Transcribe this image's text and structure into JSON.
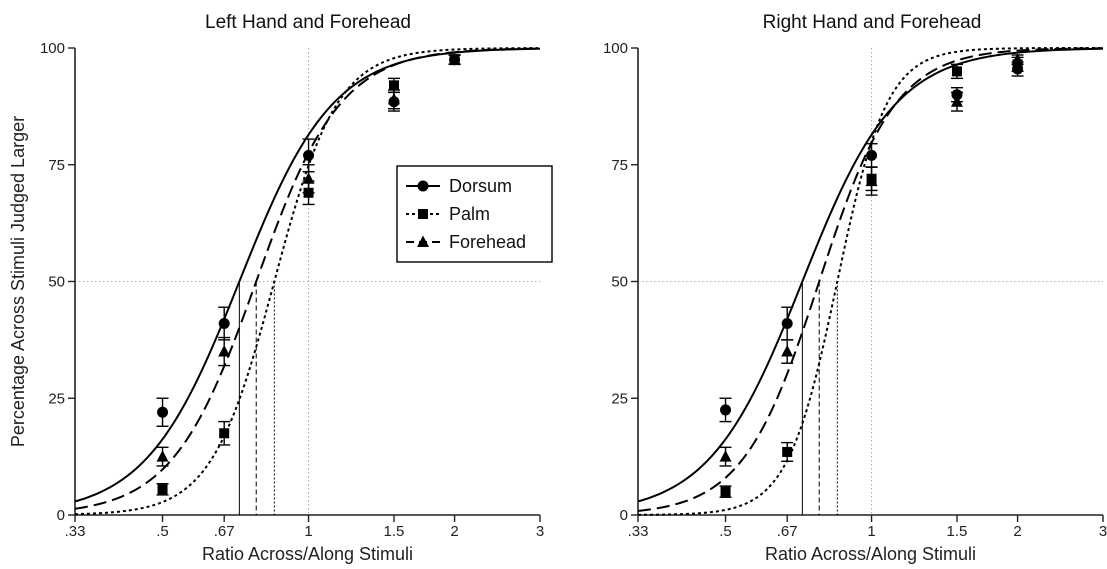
{
  "chart_data": {
    "type": "line",
    "ylabel": "Percentage Across Stimuli Judged Larger",
    "xlabel": "Ratio Across/Along Stimuli",
    "x_scale": "log",
    "xlim": [
      0.33,
      3
    ],
    "ylim": [
      0,
      100
    ],
    "x_ticks": [
      0.33,
      0.5,
      0.67,
      1,
      1.5,
      2,
      3
    ],
    "x_tick_labels": [
      ".33",
      ".5",
      ".67",
      "1",
      "1.5",
      "2",
      "3"
    ],
    "y_ticks": [
      0,
      25,
      50,
      75,
      100
    ],
    "y_tick_labels": [
      "0",
      "25",
      "50",
      "75",
      "100"
    ],
    "reference_lines": {
      "y": 50,
      "x": 1
    },
    "legend": {
      "placement": "inside-right",
      "entries": [
        "Dorsum",
        "Palm",
        "Forehead"
      ]
    },
    "panels": [
      {
        "title": "Left Hand and Forehead",
        "legend_shown": true,
        "series": [
          {
            "name": "Dorsum",
            "marker": "circle",
            "line": "solid",
            "pse": 0.72,
            "slope": 4.5,
            "points": [
              {
                "x": 0.5,
                "y": 22,
                "err": 3
              },
              {
                "x": 0.67,
                "y": 41,
                "err": 3.5
              },
              {
                "x": 1,
                "y": 77,
                "err": 3.5
              },
              {
                "x": 1.5,
                "y": 88.5,
                "err": 2
              },
              {
                "x": 2,
                "y": 97.5,
                "err": 1
              }
            ]
          },
          {
            "name": "Palm",
            "marker": "square",
            "line": "dotted",
            "pse": 0.85,
            "slope": 6.7,
            "points": [
              {
                "x": 0.5,
                "y": 5.5,
                "err": 1.2
              },
              {
                "x": 0.67,
                "y": 17.5,
                "err": 2.5
              },
              {
                "x": 1,
                "y": 69,
                "err": 2.5
              },
              {
                "x": 1.5,
                "y": 92,
                "err": 1.5
              },
              {
                "x": 2,
                "y": 97.5,
                "err": 1
              }
            ]
          },
          {
            "name": "Forehead",
            "marker": "triangle",
            "line": "dashed",
            "pse": 0.78,
            "slope": 5,
            "points": [
              {
                "x": 0.5,
                "y": 12.5,
                "err": 2
              },
              {
                "x": 0.67,
                "y": 35,
                "err": 3
              },
              {
                "x": 1,
                "y": 72,
                "err": 3
              },
              {
                "x": 1.5,
                "y": 89,
                "err": 2
              },
              {
                "x": 2,
                "y": 97.5,
                "err": 1
              }
            ]
          }
        ]
      },
      {
        "title": "Right Hand and Forehead",
        "legend_shown": false,
        "series": [
          {
            "name": "Dorsum",
            "marker": "circle",
            "line": "solid",
            "pse": 0.72,
            "slope": 4.5,
            "points": [
              {
                "x": 0.5,
                "y": 22.5,
                "err": 2.5
              },
              {
                "x": 0.67,
                "y": 41,
                "err": 3.5
              },
              {
                "x": 1,
                "y": 77,
                "err": 2.5
              },
              {
                "x": 1.5,
                "y": 90,
                "err": 1.5
              },
              {
                "x": 2,
                "y": 95.5,
                "err": 1.5
              }
            ]
          },
          {
            "name": "Palm",
            "marker": "square",
            "line": "dotted",
            "pse": 0.85,
            "slope": 8.5,
            "points": [
              {
                "x": 0.5,
                "y": 5,
                "err": 1.2
              },
              {
                "x": 0.67,
                "y": 13.5,
                "err": 2
              },
              {
                "x": 1,
                "y": 72,
                "err": 2.5
              },
              {
                "x": 1.5,
                "y": 95,
                "err": 1.5
              },
              {
                "x": 2,
                "y": 96.5,
                "err": 1.5
              }
            ]
          },
          {
            "name": "Forehead",
            "marker": "triangle",
            "line": "dashed",
            "pse": 0.78,
            "slope": 5.5,
            "points": [
              {
                "x": 0.5,
                "y": 12.5,
                "err": 2
              },
              {
                "x": 0.67,
                "y": 35,
                "err": 2.5
              },
              {
                "x": 1,
                "y": 71.5,
                "err": 3
              },
              {
                "x": 1.5,
                "y": 88.5,
                "err": 2
              },
              {
                "x": 2,
                "y": 97.5,
                "err": 1
              }
            ]
          }
        ]
      }
    ]
  }
}
